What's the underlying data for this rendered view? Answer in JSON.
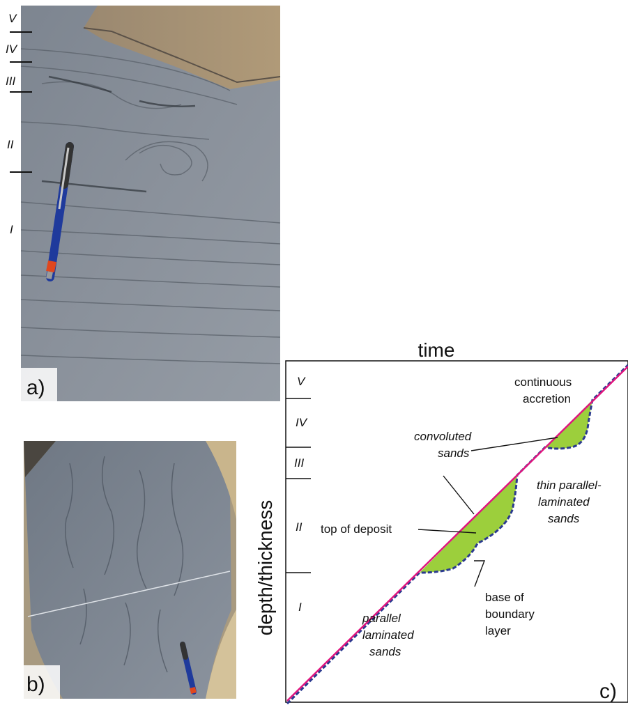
{
  "panel_a": {
    "letter": "a)",
    "units": [
      "V",
      "IV",
      "III",
      "II",
      "I"
    ]
  },
  "panel_b": {
    "letter": "b)"
  },
  "panel_c": {
    "letter": "c)",
    "x_axis_label": "time",
    "y_axis_label": "depth/thickness",
    "units": [
      "V",
      "IV",
      "III",
      "II",
      "I"
    ],
    "labels": {
      "continuous_accretion_1": "continuous",
      "continuous_accretion_2": "accretion",
      "convoluted_1": "convoluted",
      "convoluted_2": "sands",
      "thin_parallel_1": "thin parallel-",
      "thin_parallel_2": "laminated",
      "thin_parallel_3": "sands",
      "top_of_deposit": "top of deposit",
      "base_1": "base of",
      "base_2": "boundary",
      "base_3": "layer",
      "parallel_1": "parallel",
      "parallel_2": "laminated",
      "parallel_3": "sands"
    },
    "colors": {
      "top_of_deposit_line": "#e0147e",
      "boundary_layer_base": "#2b3a8f",
      "convoluted_fill": "#9ccf3c"
    }
  }
}
